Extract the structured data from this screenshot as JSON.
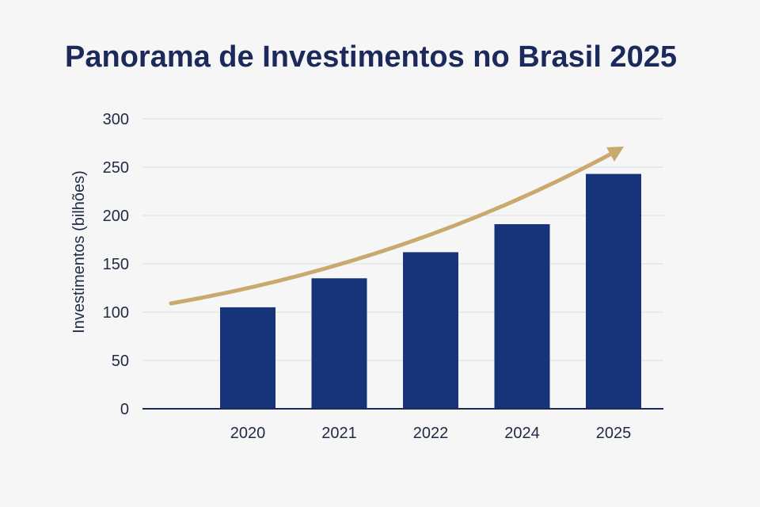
{
  "chart_data": {
    "type": "bar",
    "title": "Panorama de Investimentos no Brasil 2025",
    "xlabel": "",
    "ylabel": "Investimentos (bilhões)",
    "categories": [
      "2020",
      "2021",
      "2022",
      "2024",
      "2025"
    ],
    "values": [
      105,
      135,
      162,
      191,
      243
    ],
    "ylim": [
      0,
      300
    ],
    "yticks": [
      0,
      50,
      100,
      150,
      200,
      250,
      300
    ],
    "grid": true,
    "trend_arrow": true,
    "colors": {
      "bar": "#17337a",
      "arrow": "#c9a96e",
      "title": "#1b2a5a"
    }
  }
}
